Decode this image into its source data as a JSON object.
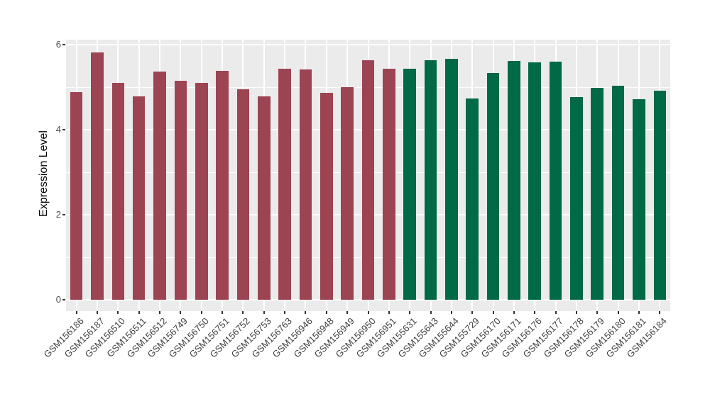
{
  "figure": {
    "background_color": "#FFFFFF"
  },
  "chart_data": {
    "type": "bar",
    "title": "",
    "xlabel": "",
    "ylabel": "Expression Level",
    "ylim": [
      0,
      6.1
    ],
    "yticks": [
      0,
      2,
      4,
      6
    ],
    "minor_gridlines_y": [
      1,
      3,
      5
    ],
    "grid": "white major and minor gridlines on gray panel, vertical major gridlines at each bar center",
    "legend_position": "none",
    "panel_background": "#EBEBEB",
    "gridline_color": "#FFFFFF",
    "axis_text_color": "#4D4D4D",
    "x_label_color": "#404040",
    "tick_mark_color": "#333333",
    "axis_title_color": "#000000",
    "bar_width_fraction": 0.6,
    "categories": [
      "GSM156186",
      "GSM156187",
      "GSM156510",
      "GSM156511",
      "GSM156512",
      "GSM156749",
      "GSM156750",
      "GSM156751",
      "GSM156752",
      "GSM156753",
      "GSM156763",
      "GSM156946",
      "GSM156948",
      "GSM156949",
      "GSM156950",
      "GSM156951",
      "GSM155631",
      "GSM155643",
      "GSM155644",
      "GSM155729",
      "GSM156170",
      "GSM156171",
      "GSM156176",
      "GSM156177",
      "GSM156178",
      "GSM156179",
      "GSM156180",
      "GSM156181",
      "GSM156184"
    ],
    "values": [
      4.88,
      5.82,
      5.1,
      4.78,
      5.36,
      5.15,
      5.1,
      5.39,
      4.95,
      4.79,
      5.43,
      5.41,
      4.87,
      5.0,
      5.63,
      5.43,
      5.44,
      5.63,
      5.67,
      4.74,
      5.33,
      5.61,
      5.58,
      5.6,
      4.76,
      4.99,
      5.03,
      4.72,
      4.91
    ],
    "group_split_index": 16,
    "group_colors": {
      "group1": "#9C4452",
      "group2": "#006945"
    }
  }
}
